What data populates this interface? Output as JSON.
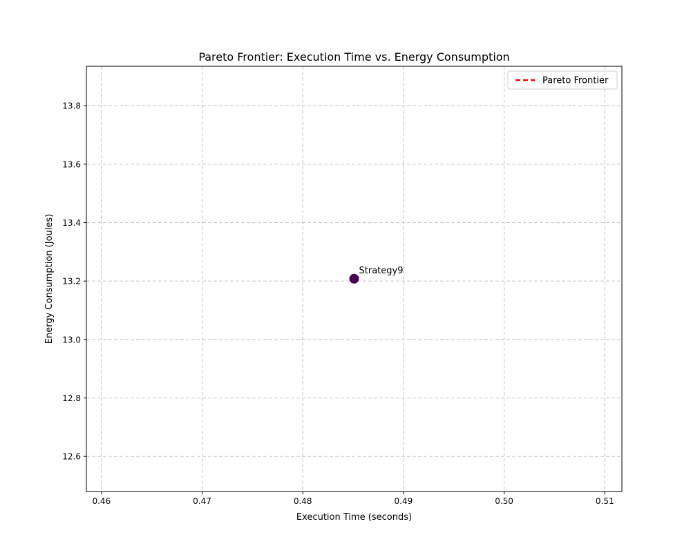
{
  "chart_data": {
    "type": "scatter",
    "title": "Pareto Frontier: Execution Time vs. Energy Consumption",
    "xlabel": "Execution Time (seconds)",
    "ylabel": "Energy Consumption (Joules)",
    "xlim": [
      0.4585,
      0.5117
    ],
    "ylim": [
      12.48,
      13.935
    ],
    "xticks": [
      0.46,
      0.47,
      0.48,
      0.49,
      0.5,
      0.51
    ],
    "xtick_labels": [
      "0.46",
      "0.47",
      "0.48",
      "0.49",
      "0.50",
      "0.51"
    ],
    "yticks": [
      12.6,
      12.8,
      13.0,
      13.2,
      13.4,
      13.6,
      13.8
    ],
    "ytick_labels": [
      "12.6",
      "12.8",
      "13.0",
      "13.2",
      "13.4",
      "13.6",
      "13.8"
    ],
    "grid": true,
    "points": [
      {
        "label": "Strategy9",
        "x": 0.4851,
        "y": 13.208,
        "color": "#440154"
      }
    ],
    "series": [
      {
        "name": "Pareto Frontier",
        "style": "dashed",
        "color": "#ff0000",
        "x": [],
        "y": []
      }
    ],
    "legend": {
      "position": "upper-right",
      "entries": [
        "Pareto Frontier"
      ]
    }
  }
}
